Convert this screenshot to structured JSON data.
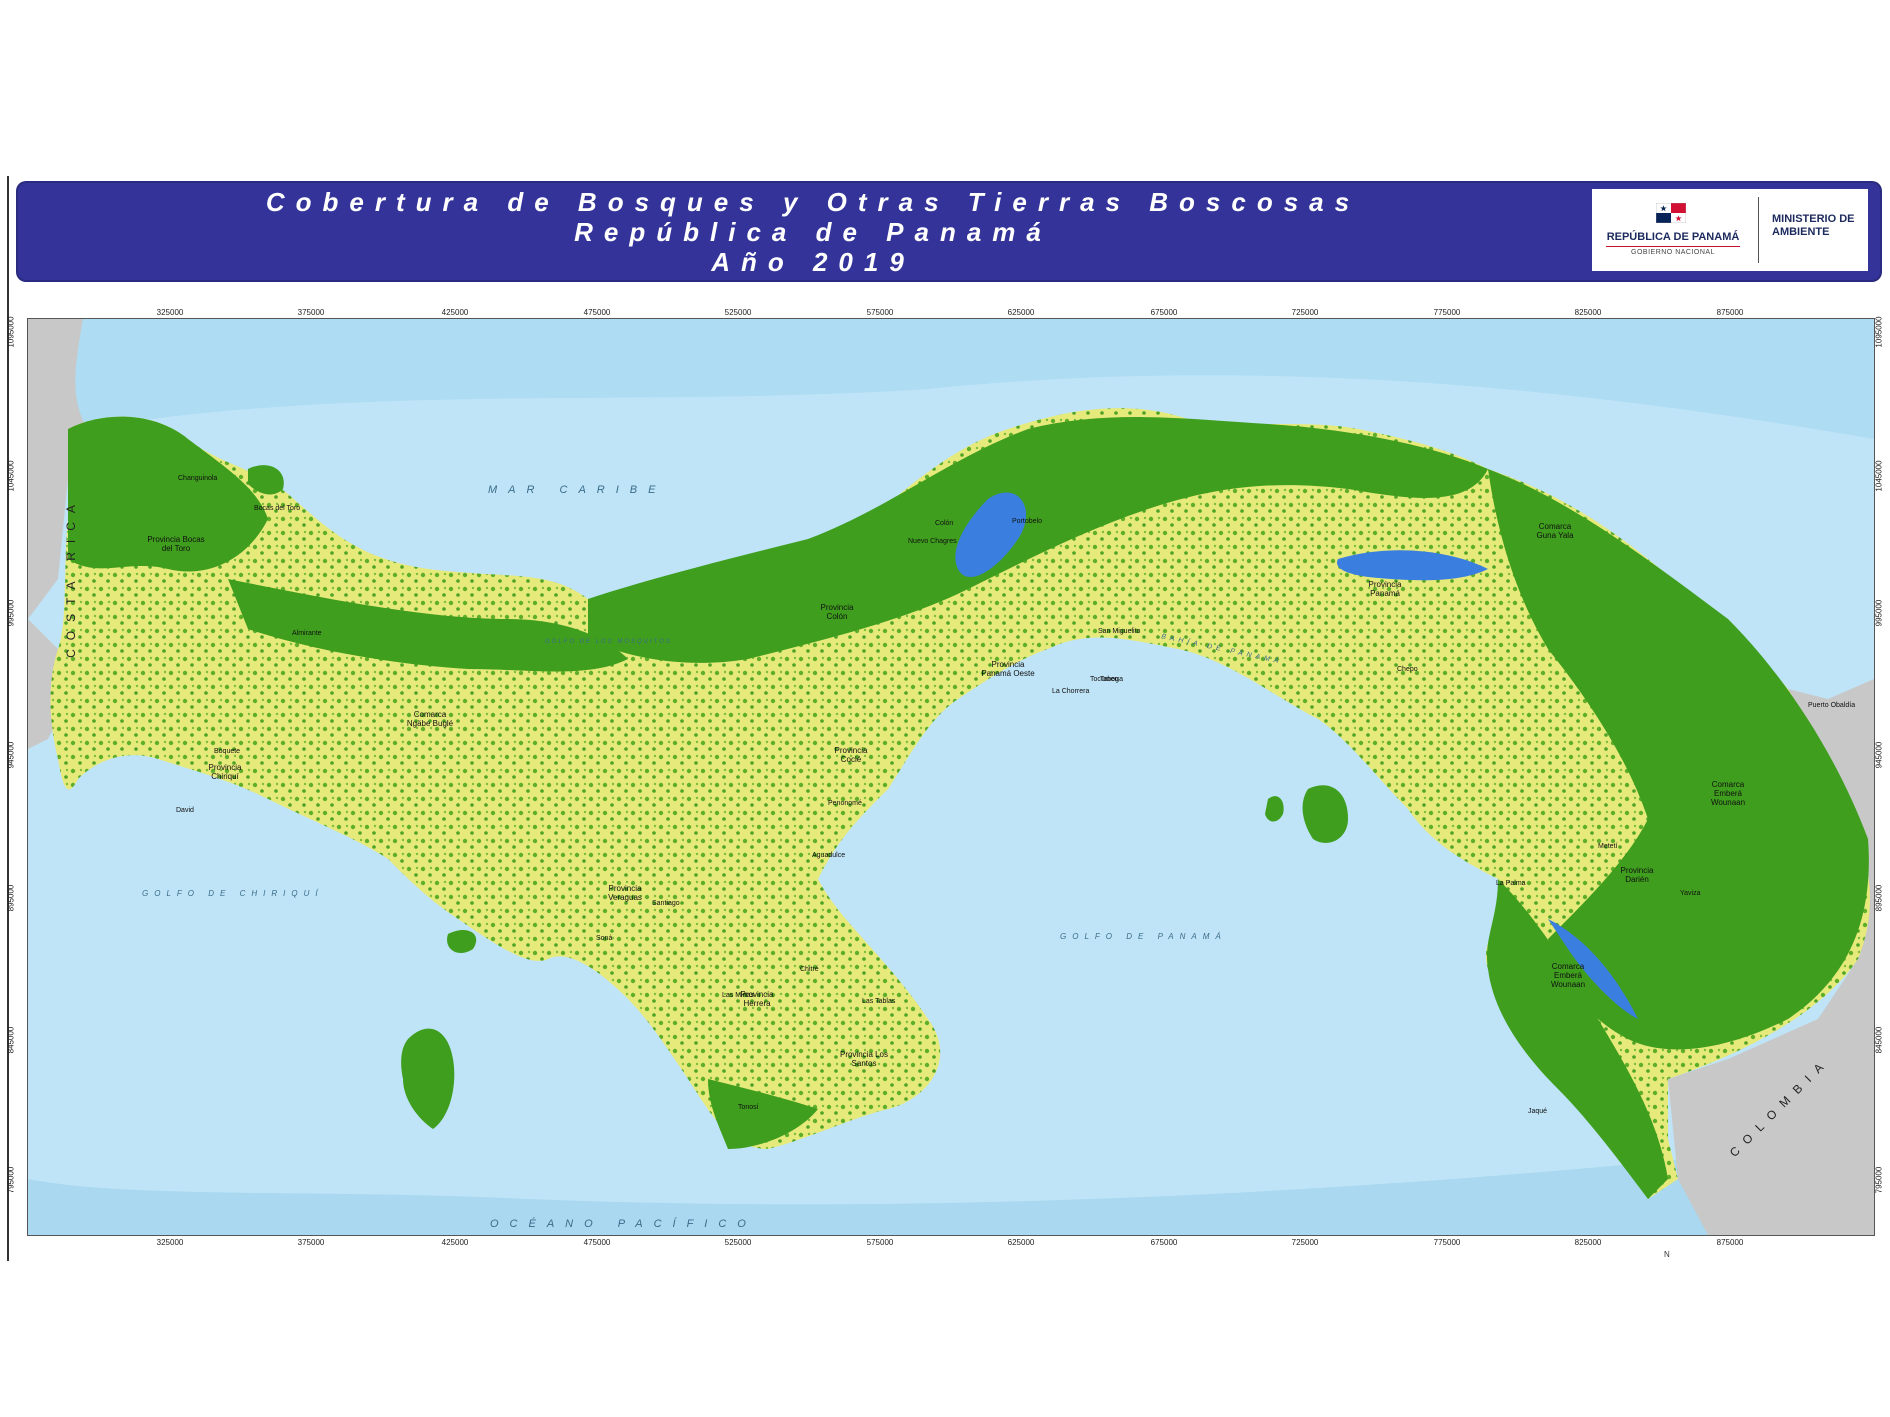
{
  "header": {
    "title_lines": [
      "Cobertura de Bosques y Otras Tierras Boscosas",
      "República de Panamá",
      "Año 2019"
    ],
    "logo": {
      "republic": "REPÚBLICA DE PANAMÁ",
      "government": "GOBIERNO NACIONAL",
      "ministry_line1": "MINISTERIO DE",
      "ministry_line2": "AMBIENTE"
    }
  },
  "map": {
    "x_ticks": [
      "325000",
      "375000",
      "425000",
      "475000",
      "525000",
      "575000",
      "625000",
      "675000",
      "725000",
      "775000",
      "825000",
      "875000"
    ],
    "y_ticks": [
      "1095000",
      "1045000",
      "995000",
      "945000",
      "895000",
      "845000",
      "795000"
    ],
    "sea_labels": {
      "caribbean": "MAR CARIBE",
      "pacific": "OCÉANO PACÍFICO",
      "gulf_panama": "GOLFO DE PANAMÁ",
      "gulf_chiriqui": "GOLFO DE CHIRIQUÍ",
      "bahia_panama": "BAHÍA DE PANAMÁ",
      "gulf_mosquitos": "GOLFO DE LOS MOSQUITOS"
    },
    "countries": {
      "costa_rica": "COSTA RICA",
      "colombia": "COLOMBIA"
    },
    "provinces": [
      "Provincia Bocas del Toro",
      "Comarca Ngäbe Buglé",
      "Provincia Chiriquí",
      "Provincia Veraguas",
      "Provincia Coclé",
      "Provincia Colón",
      "Provincia Panamá Oeste",
      "Provincia Panamá",
      "Comarca Guna Yala",
      "Provincia Herrera",
      "Provincia Los Santos",
      "Comarca Emberá Wounaan",
      "Provincia Darién",
      "Comarca Emberá Wounaan"
    ],
    "places": [
      "Changuinola",
      "Bocas del Toro",
      "Almirante",
      "David",
      "Boquete",
      "Santiago",
      "Penonomé",
      "Aguadulce",
      "Chitré",
      "Las Tablas",
      "La Chorrera",
      "Tocumen",
      "Chepo",
      "Colón",
      "Nuevo Chagres",
      "Portobelo",
      "San Miguelito",
      "Taboga",
      "La Palma",
      "Yaviza",
      "Metetí",
      "Puerto Obaldía",
      "Jaqué",
      "Soná",
      "Las Minas",
      "Tonosí"
    ],
    "north": "N",
    "colors": {
      "forest": "#3f9e1e",
      "other_wooded": "#e6ea7a",
      "water_inland": "#3a7fe0",
      "sea": "#bfe4f7",
      "neighbor": "#c8c8c8",
      "header": "#33339a"
    }
  }
}
